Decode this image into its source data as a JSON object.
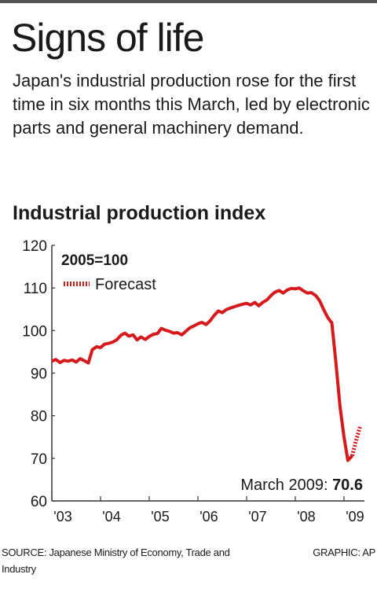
{
  "headline": "Signs of life",
  "subtitle": "Japan's industrial production rose for the first time in six months this March, led by electronic parts and general machinery demand.",
  "chart_data": {
    "type": "line",
    "title": "Industrial production index",
    "base_note": "2005=100",
    "legend": [
      {
        "label": "Forecast",
        "style": "dashed"
      }
    ],
    "legend_placement": "top-left",
    "ylim": [
      60,
      120
    ],
    "yticks": [
      60,
      70,
      80,
      90,
      100,
      110,
      120
    ],
    "xlim": [
      2003,
      2009.42
    ],
    "xticks": [
      {
        "value": 2003,
        "label": "'03"
      },
      {
        "value": 2004,
        "label": "'04"
      },
      {
        "value": 2005,
        "label": "'05"
      },
      {
        "value": 2006,
        "label": "'06"
      },
      {
        "value": 2007,
        "label": "'07"
      },
      {
        "value": 2008,
        "label": "'08"
      },
      {
        "value": 2009,
        "label": "'09"
      }
    ],
    "grid": false,
    "color": "#d7191c",
    "series": [
      {
        "type": "actual",
        "x": [
          2003.0,
          2003.08,
          2003.17,
          2003.25,
          2003.33,
          2003.42,
          2003.5,
          2003.58,
          2003.67,
          2003.75,
          2003.83,
          2003.92,
          2004.0,
          2004.08,
          2004.17,
          2004.25,
          2004.33,
          2004.42,
          2004.5,
          2004.58,
          2004.67,
          2004.75,
          2004.83,
          2004.92,
          2005.0,
          2005.08,
          2005.17,
          2005.25,
          2005.33,
          2005.42,
          2005.5,
          2005.58,
          2005.67,
          2005.75,
          2005.83,
          2005.92,
          2006.0,
          2006.08,
          2006.17,
          2006.25,
          2006.33,
          2006.42,
          2006.5,
          2006.58,
          2006.67,
          2006.75,
          2006.83,
          2006.92,
          2007.0,
          2007.08,
          2007.17,
          2007.25,
          2007.33,
          2007.42,
          2007.5,
          2007.58,
          2007.67,
          2007.75,
          2007.83,
          2007.92,
          2008.0,
          2008.08,
          2008.17,
          2008.25,
          2008.33,
          2008.42,
          2008.5,
          2008.58,
          2008.67,
          2008.75,
          2008.83,
          2008.92,
          2009.0,
          2009.08,
          2009.17
        ],
        "y": [
          92.8,
          93.2,
          92.5,
          93.0,
          92.8,
          93.1,
          92.6,
          93.4,
          92.9,
          92.4,
          95.5,
          96.2,
          96.0,
          96.8,
          97.0,
          97.3,
          97.8,
          98.9,
          99.4,
          98.7,
          99.0,
          97.8,
          98.5,
          97.9,
          98.6,
          99.1,
          99.3,
          100.5,
          100.1,
          99.8,
          99.4,
          99.5,
          99.0,
          99.8,
          100.6,
          101.1,
          101.6,
          101.9,
          101.4,
          102.3,
          103.5,
          104.6,
          104.2,
          104.9,
          105.3,
          105.6,
          105.9,
          106.2,
          106.4,
          106.0,
          106.6,
          105.8,
          106.6,
          107.2,
          108.2,
          109.0,
          109.4,
          108.8,
          109.5,
          109.9,
          109.8,
          110.0,
          109.3,
          108.8,
          108.9,
          108.2,
          107.0,
          105.0,
          103.0,
          101.8,
          93.0,
          82.0,
          75.0,
          69.5,
          70.6
        ]
      },
      {
        "type": "forecast",
        "x": [
          2009.17,
          2009.25,
          2009.33
        ],
        "y": [
          70.6,
          74.3,
          77.4
        ]
      }
    ],
    "annotation": {
      "label": "March 2009: ",
      "value": "70.6",
      "x": 2009.17,
      "y": 70.6
    }
  },
  "footer": {
    "source": "SOURCE: Japanese Ministry of Economy, Trade and Industry",
    "credit": "GRAPHIC: AP"
  }
}
